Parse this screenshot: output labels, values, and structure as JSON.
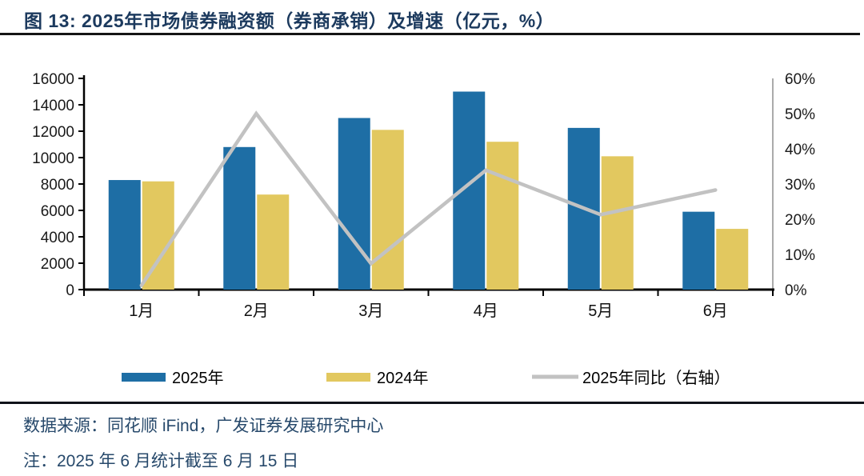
{
  "page": {
    "title": "图 13:  2025年市场债券融资额（券商承销）及增速（亿元，%）"
  },
  "chart_data": {
    "type": "bar",
    "title": "2025年市场债券融资额（券商承销）及增速（亿元，%）",
    "categories": [
      "1月",
      "2月",
      "3月",
      "4月",
      "5月",
      "6月"
    ],
    "series": [
      {
        "key": "2025",
        "name": "2025年",
        "type": "bar",
        "axis": "left",
        "color": "#1E6EA5",
        "values": [
          8300,
          10800,
          13000,
          15000,
          12250,
          5900
        ]
      },
      {
        "key": "2024",
        "name": "2024年",
        "type": "bar",
        "axis": "left",
        "color": "#E2C85F",
        "values": [
          8200,
          7200,
          12100,
          11200,
          10100,
          4600
        ]
      },
      {
        "key": "yoy",
        "name": "2025年同比（右轴）",
        "type": "line",
        "axis": "right",
        "color": "#C2C2C2",
        "values": [
          1.2,
          50.0,
          7.4,
          33.9,
          21.3,
          28.3
        ]
      }
    ],
    "left_axis": {
      "min": 0,
      "max": 16000,
      "step": 2000,
      "labels": [
        "0",
        "2000",
        "4000",
        "6000",
        "8000",
        "10000",
        "12000",
        "14000",
        "16000"
      ]
    },
    "right_axis": {
      "min": 0,
      "max": 60,
      "step": 10,
      "labels": [
        "0%",
        "10%",
        "20%",
        "30%",
        "40%",
        "50%",
        "60%"
      ]
    },
    "legend_position": "bottom",
    "grid": false
  },
  "footer": {
    "source": "数据来源：同花顺 iFind，广发证券发展研究中心",
    "note": "注：2025 年 6 月统计截至 6 月 15 日"
  },
  "colors": {
    "title_text": "#1C3A5E",
    "footer_text": "#27496B",
    "bar_2025": "#1E6EA5",
    "bar_2024": "#E2C85F",
    "yoy_line": "#C2C2C2",
    "axis": "#000000",
    "right_spine": "#ABABAB",
    "tick_label": "#1A1A1A",
    "rule": "#141414"
  }
}
